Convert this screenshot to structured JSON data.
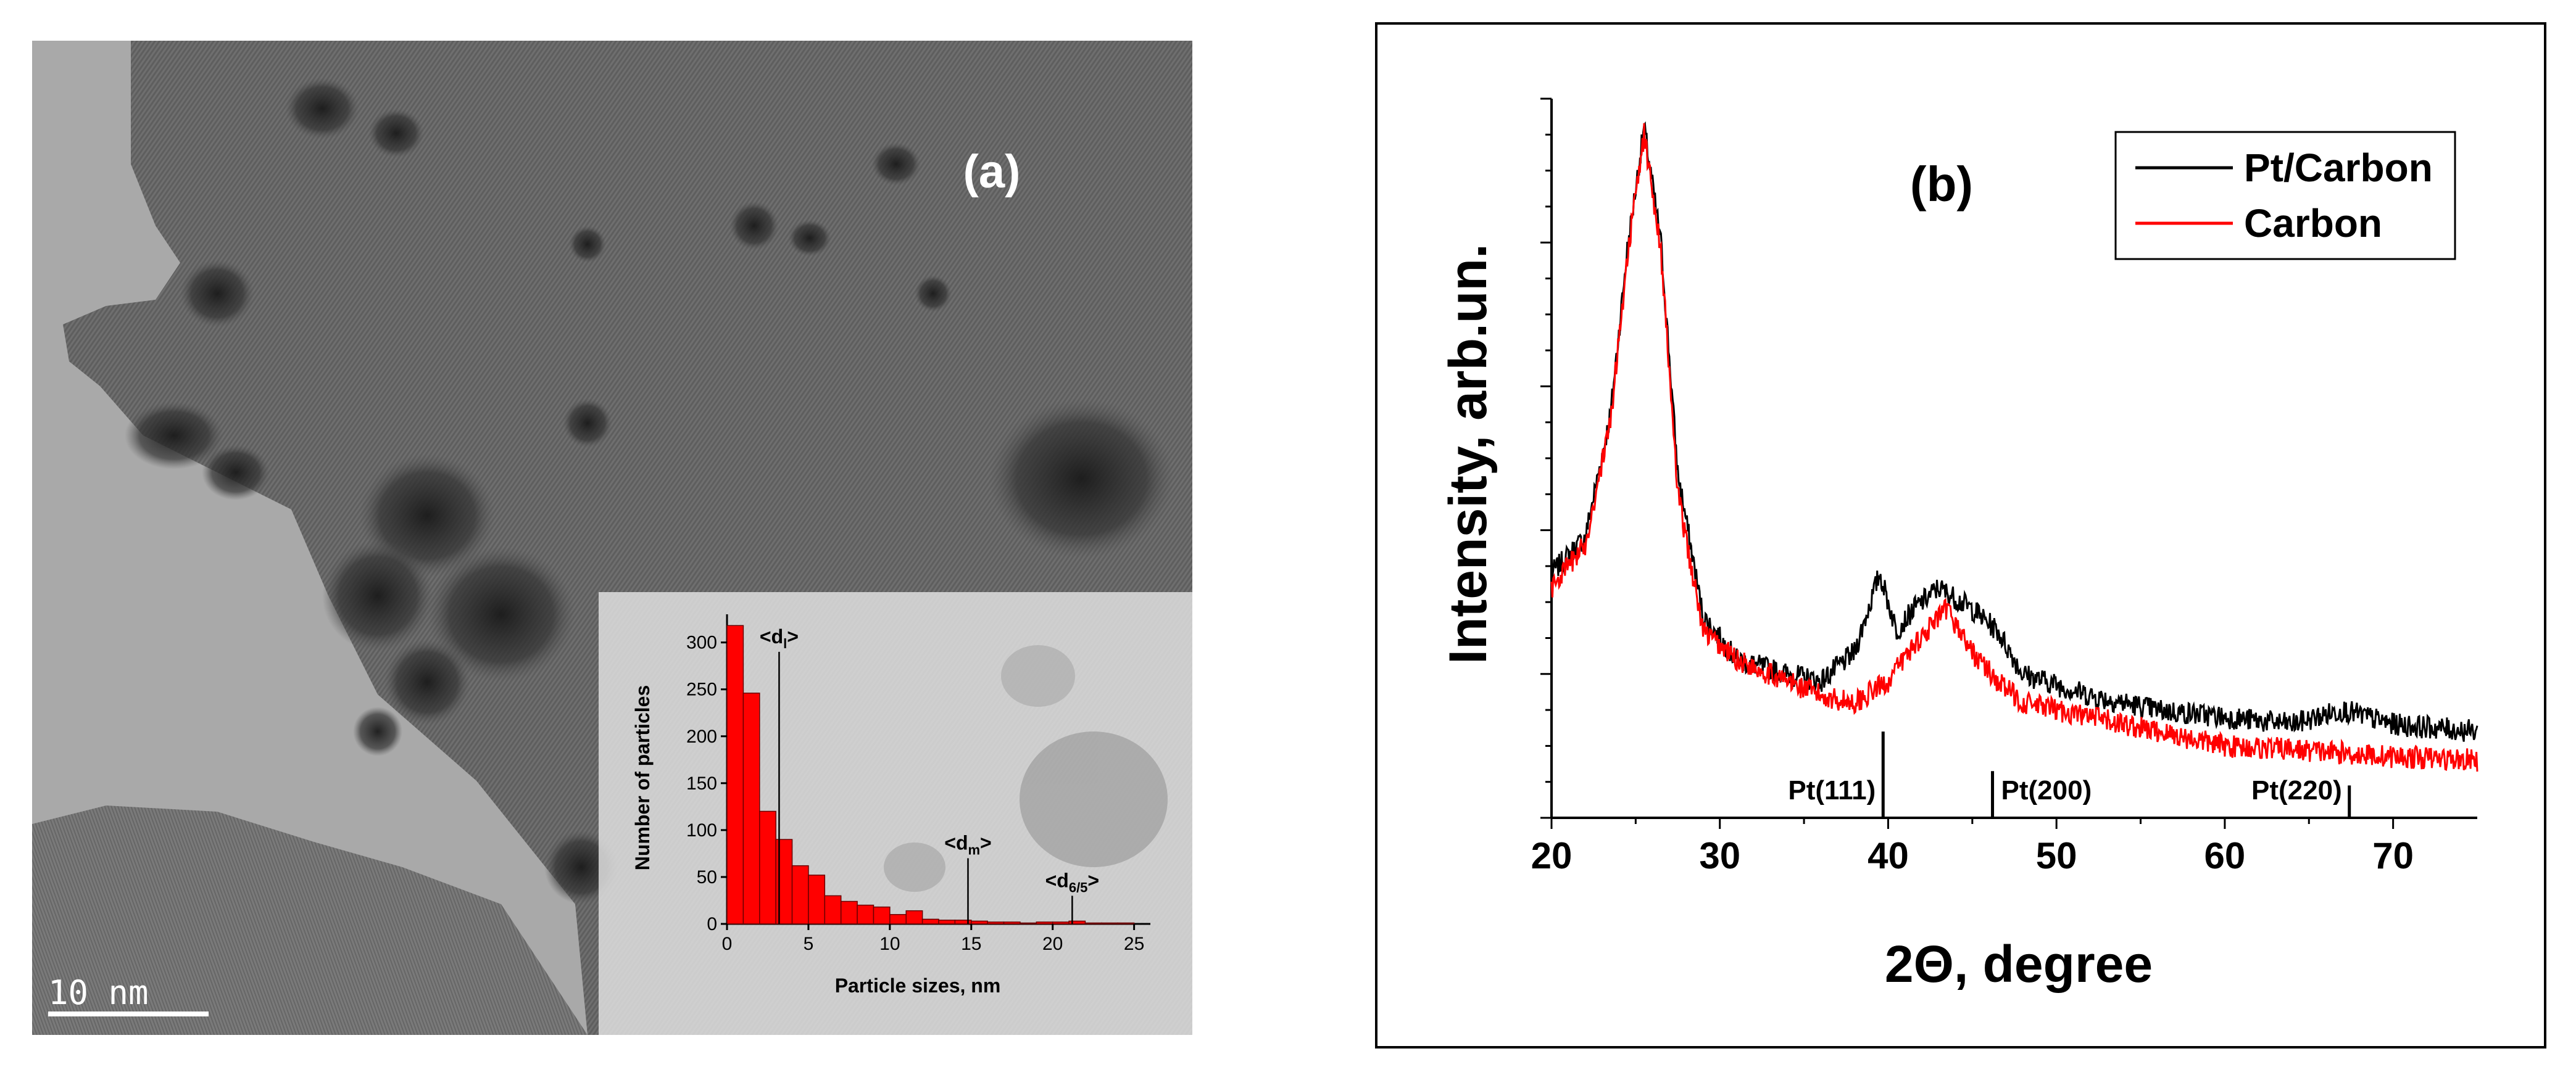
{
  "panel_a": {
    "label": "(a)",
    "scale_bar": "10 nm",
    "inset": {
      "xlabel": "Particle sizes, nm",
      "ylabel": "Number of particles"
    }
  },
  "panel_b": {
    "label": "(b)",
    "xlabel": "2Θ, degree",
    "ylabel": "Intensity, arb.un."
  },
  "chart_data": [
    {
      "type": "bar",
      "title": "",
      "xlabel": "Particle sizes, nm",
      "ylabel": "Number of particles",
      "xlim": [
        0,
        26
      ],
      "ylim": [
        0,
        330
      ],
      "bin_width": 1,
      "x_ticks": [
        0,
        5,
        10,
        15,
        20,
        25
      ],
      "y_ticks": [
        0,
        50,
        100,
        150,
        200,
        250,
        300
      ],
      "bin_starts": [
        0,
        1,
        2,
        3,
        4,
        5,
        6,
        7,
        8,
        9,
        10,
        11,
        12,
        13,
        14,
        15,
        16,
        17,
        18,
        19,
        20,
        21,
        22,
        23,
        24
      ],
      "values": [
        318,
        246,
        120,
        90,
        62,
        52,
        30,
        24,
        20,
        18,
        10,
        14,
        5,
        4,
        4,
        3,
        2,
        2,
        1,
        2,
        2,
        3,
        1,
        1,
        1
      ],
      "markers": [
        {
          "x": 3.2,
          "label": "<d",
          "sub": "l",
          "suffix": ">",
          "top": 290
        },
        {
          "x": 14.8,
          "label": "<d",
          "sub": "m",
          "suffix": ">",
          "top": 70
        },
        {
          "x": 21.2,
          "label": "<d",
          "sub": "6/5",
          "suffix": ">",
          "top": 30
        }
      ],
      "background": "TEM micrograph"
    },
    {
      "type": "line",
      "title": "(b)",
      "xlabel": "2Θ, degree",
      "ylabel": "Intensity, arb.un.",
      "xlim": [
        20,
        75
      ],
      "ylim": [
        0,
        10
      ],
      "x_ticks": [
        20,
        30,
        40,
        50,
        60,
        70
      ],
      "y_ticks": [],
      "legend_position": "top-right",
      "series": [
        {
          "name": "Pt/Carbon",
          "color": "#000000",
          "x": [
            20,
            22,
            23.5,
            24.5,
            25.5,
            26.5,
            27.5,
            29,
            31,
            34,
            36,
            38,
            39.5,
            40.5,
            41.5,
            43,
            45,
            46.5,
            48,
            52,
            56,
            60,
            64,
            67,
            70,
            75
          ],
          "y": [
            3.4,
            3.9,
            5.6,
            7.9,
            9.6,
            8.0,
            4.8,
            2.8,
            2.2,
            2.0,
            1.9,
            2.3,
            3.4,
            2.6,
            2.9,
            3.2,
            2.9,
            2.6,
            2.0,
            1.7,
            1.5,
            1.4,
            1.3,
            1.5,
            1.3,
            1.2
          ]
        },
        {
          "name": "Carbon",
          "color": "#ff0000",
          "x": [
            20,
            22,
            23.5,
            24.5,
            25.5,
            26.5,
            27.5,
            29,
            31,
            34,
            36,
            38,
            40,
            41.5,
            43.5,
            45,
            46.5,
            48,
            52,
            56,
            60,
            64,
            67,
            70,
            75
          ],
          "y": [
            3.2,
            3.8,
            5.5,
            7.8,
            9.5,
            7.9,
            4.5,
            2.6,
            2.2,
            1.9,
            1.7,
            1.6,
            1.9,
            2.4,
            2.9,
            2.3,
            1.9,
            1.6,
            1.4,
            1.2,
            1.0,
            0.95,
            0.9,
            0.85,
            0.8
          ]
        }
      ],
      "reference_lines": [
        {
          "x": 39.7,
          "label": "Pt(111)",
          "height": 1.2
        },
        {
          "x": 46.2,
          "label": "Pt(200)",
          "height": 0.65
        },
        {
          "x": 67.4,
          "label": "Pt(220)",
          "height": 0.45
        }
      ]
    }
  ]
}
